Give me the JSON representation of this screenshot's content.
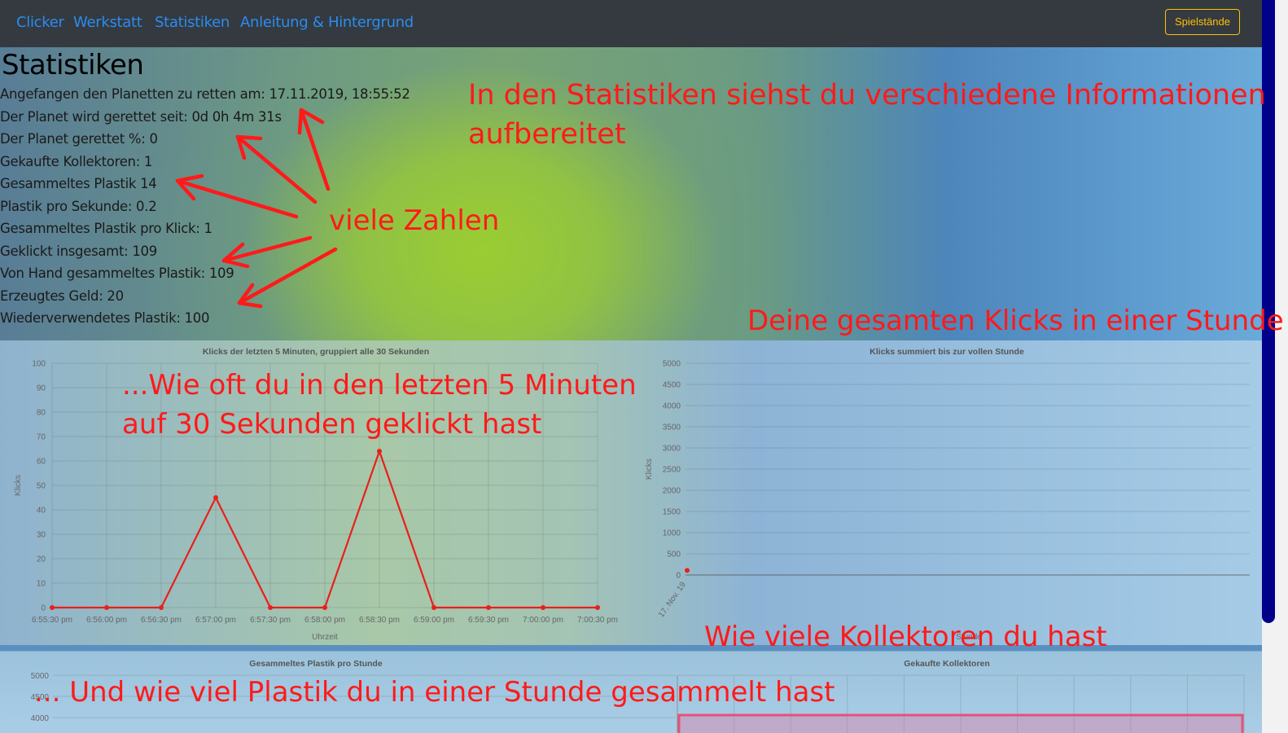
{
  "nav": {
    "items": [
      "Clicker",
      "Werkstatt",
      "Statistiken",
      "Anleitung & Hintergrund"
    ],
    "save_button": "Spielstände"
  },
  "page": {
    "title": "Statistiken"
  },
  "stats": [
    "Angefangen den Planetten zu retten am: 17.11.2019, 18:55:52",
    "Der Planet wird gerettet seit: 0d 0h 4m 31s",
    "Der Planet gerettet %: 0",
    "Gekaufte Kollektoren: 1",
    "Gesammeltes Plastik 14",
    "Plastik pro Sekunde: 0.2",
    "Gesammeltes Plastik pro Klick: 1",
    "Geklickt insgesamt: 109",
    "Von Hand gesammeltes Plastik: 109",
    "Erzeugtes Geld: 20",
    "Wiederverwendetes Plastik: 100"
  ],
  "annotations": {
    "intro_line1": "In den Statistiken siehst du verschiedene Informationen",
    "intro_line2": "aufbereitet",
    "numbers": "viele Zahlen",
    "total_clicks": "Deine gesamten Klicks in einer Stunde",
    "five_min_line1": "...Wie oft du in den letzten 5 Minuten",
    "five_min_line2": "auf 30 Sekunden geklickt hast",
    "collectors": "Wie viele Kollektoren du hast",
    "plastic_hour": "... Und wie viel Plastik du in einer Stunde gesammelt hast"
  },
  "colors": {
    "navbar": "#343a40",
    "nav_link": "#2b8cf0",
    "save_button": "#ffc107",
    "annotation": "#ff1a1a",
    "series": "#e8201a"
  },
  "chart_data": [
    {
      "type": "line",
      "title": "Klicks der letzten 5 Minuten, gruppiert alle 30 Sekunden",
      "xlabel": "Uhrzeit",
      "ylabel": "Klicks",
      "x": [
        "6:55:30 pm",
        "6:56:00 pm",
        "6:56:30 pm",
        "6:57:00 pm",
        "6:57:30 pm",
        "6:58:00 pm",
        "6:58:30 pm",
        "6:59:00 pm",
        "6:59:30 pm",
        "7:00:00 pm",
        "7:00:30 pm"
      ],
      "values": [
        0,
        0,
        0,
        45,
        0,
        0,
        64,
        0,
        0,
        0,
        0
      ],
      "yticks": [
        "0",
        "10",
        "20",
        "30",
        "40",
        "50",
        "60",
        "70",
        "80",
        "90",
        "100"
      ],
      "ylim": [
        0,
        100
      ],
      "grid": true
    },
    {
      "type": "scatter",
      "title": "Klicks summiert bis zur vollen Stunde",
      "xlabel": "Stunde",
      "ylabel": "Klicks",
      "x": [
        "17. Nov. 19"
      ],
      "values": [
        109
      ],
      "yticks": [
        "0",
        "500",
        "1000",
        "1500",
        "2000",
        "2500",
        "3000",
        "3500",
        "4000",
        "4500",
        "5000"
      ],
      "ylim": [
        0,
        5000
      ],
      "grid": true
    },
    {
      "type": "line",
      "title": "Gesammeltes Plastik pro Stunde",
      "yticks": [
        "4000",
        "4500",
        "5000"
      ],
      "ylim": [
        0,
        5000
      ],
      "grid": true
    },
    {
      "type": "bar",
      "title": "Gekaufte Kollektoren",
      "grid": true
    }
  ]
}
